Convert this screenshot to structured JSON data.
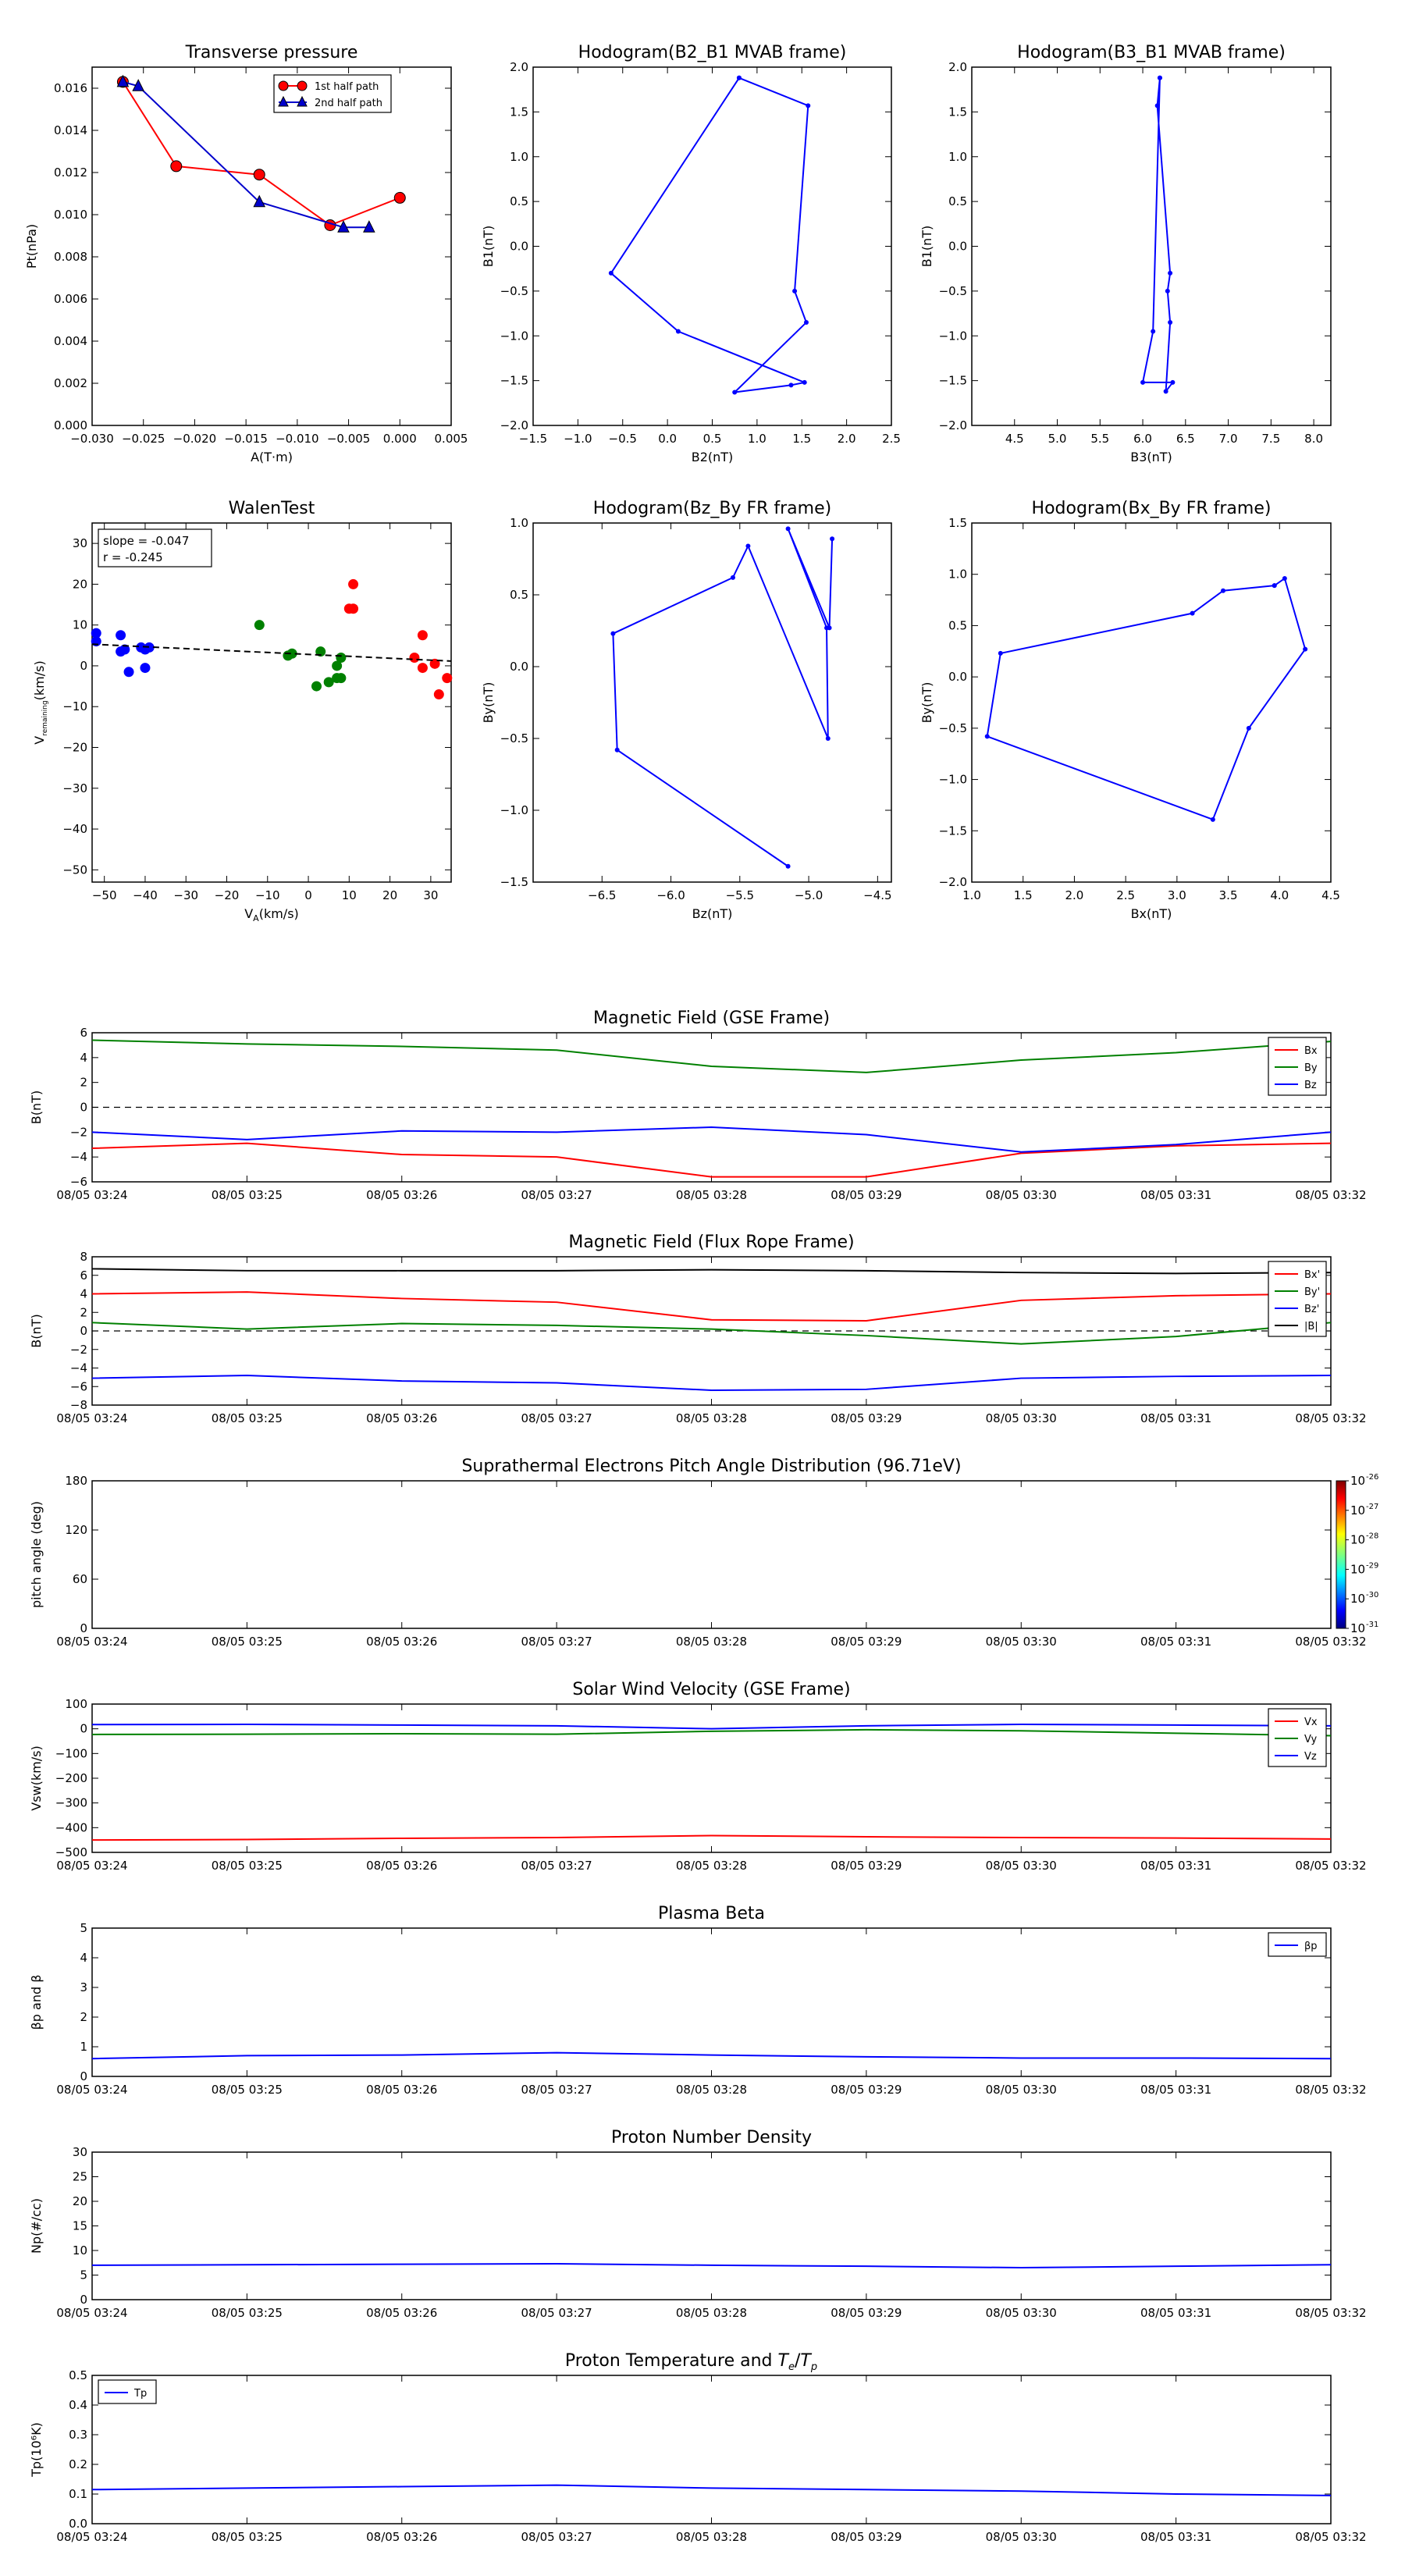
{
  "time_ticks": [
    "08/05 03:24",
    "08/05 03:25",
    "08/05 03:26",
    "08/05 03:27",
    "08/05 03:28",
    "08/05 03:29",
    "08/05 03:30",
    "08/05 03:31",
    "08/05 03:32"
  ],
  "chart_data": [
    {
      "id": "pt",
      "type": "line",
      "title": "Transverse pressure",
      "xlabel": "A(T·m)",
      "ylabel": "Pt(nPa)",
      "xlim": [
        -0.03,
        0.005
      ],
      "ylim": [
        0,
        0.017
      ],
      "xticks": [
        -0.03,
        -0.025,
        -0.02,
        -0.015,
        -0.01,
        -0.005,
        0.0,
        0.005
      ],
      "xtick_labels": [
        "−0.030",
        "−0.025",
        "−0.020",
        "−0.015",
        "−0.010",
        "−0.005",
        "0.000",
        "0.005"
      ],
      "yticks": [
        0,
        0.002,
        0.004,
        0.006,
        0.008,
        0.01,
        0.012,
        0.014,
        0.016
      ],
      "ytick_labels": [
        "0.000",
        "0.002",
        "0.004",
        "0.006",
        "0.008",
        "0.010",
        "0.012",
        "0.014",
        "0.016"
      ],
      "legend": "top-center",
      "series": [
        {
          "name": "1st half path",
          "color": "#ff0000",
          "marker": "circle",
          "x": [
            -0.027,
            -0.0218,
            -0.0137,
            -0.0068,
            0.0
          ],
          "y": [
            0.0163,
            0.0123,
            0.0119,
            0.0095,
            0.0108
          ]
        },
        {
          "name": "2nd half path",
          "color": "#0000cc",
          "marker": "triangle",
          "x": [
            -0.027,
            -0.0255,
            -0.0137,
            -0.0055,
            -0.003
          ],
          "y": [
            0.0163,
            0.0161,
            0.0106,
            0.0094,
            0.0094
          ]
        }
      ]
    },
    {
      "id": "h21",
      "type": "line",
      "title": "Hodogram(B2_B1 MVAB frame)",
      "xlabel": "B2(nT)",
      "ylabel": "B1(nT)",
      "xlim": [
        -1.5,
        2.5
      ],
      "ylim": [
        -2.0,
        2.0
      ],
      "xticks": [
        -1.5,
        -1.0,
        -0.5,
        0.0,
        0.5,
        1.0,
        1.5,
        2.0,
        2.5
      ],
      "xtick_labels": [
        "−1.5",
        "−1.0",
        "−0.5",
        "0.0",
        "0.5",
        "1.0",
        "1.5",
        "2.0",
        "2.5"
      ],
      "yticks": [
        -2.0,
        -1.5,
        -1.0,
        -0.5,
        0.0,
        0.5,
        1.0,
        1.5,
        2.0
      ],
      "ytick_labels": [
        "−2.0",
        "−1.5",
        "−1.0",
        "−0.5",
        "0.0",
        "0.5",
        "1.0",
        "1.5",
        "2.0"
      ],
      "series": [
        {
          "color": "#0000ff",
          "marker": "dot",
          "x": [
            0.8,
            1.57,
            1.42,
            1.55,
            0.75,
            1.38,
            1.53,
            0.12,
            -0.63,
            0.8
          ],
          "y": [
            1.88,
            1.57,
            -0.5,
            -0.85,
            -1.63,
            -1.55,
            -1.52,
            -0.95,
            -0.3,
            1.88
          ]
        }
      ]
    },
    {
      "id": "h31",
      "type": "line",
      "title": "Hodogram(B3_B1 MVAB frame)",
      "xlabel": "B3(nT)",
      "ylabel": "B1(nT)",
      "xlim": [
        4.0,
        8.2
      ],
      "ylim": [
        -2.0,
        2.0
      ],
      "xticks": [
        4.5,
        5.0,
        5.5,
        6.0,
        6.5,
        7.0,
        7.5,
        8.0
      ],
      "xtick_labels": [
        "4.5",
        "5.0",
        "5.5",
        "6.0",
        "6.5",
        "7.0",
        "7.5",
        "8.0"
      ],
      "yticks": [
        -2.0,
        -1.5,
        -1.0,
        -0.5,
        0.0,
        0.5,
        1.0,
        1.5,
        2.0
      ],
      "ytick_labels": [
        "−2.0",
        "−1.5",
        "−1.0",
        "−0.5",
        "0.0",
        "0.5",
        "1.0",
        "1.5",
        "2.0"
      ],
      "series": [
        {
          "color": "#0000ff",
          "marker": "dot",
          "x": [
            6.2,
            6.17,
            6.32,
            6.29,
            6.32,
            6.27,
            6.35,
            6.0,
            6.12,
            6.2
          ],
          "y": [
            1.88,
            1.57,
            -0.3,
            -0.5,
            -0.85,
            -1.62,
            -1.52,
            -1.52,
            -0.95,
            1.88
          ]
        }
      ]
    },
    {
      "id": "walen",
      "type": "scatter",
      "title": "WalenTest",
      "xlabel": "V_A(km/s)",
      "ylabel": "V_remaining(km/s)",
      "xlim": [
        -53,
        35
      ],
      "ylim": [
        -53,
        35
      ],
      "xticks": [
        -50,
        -40,
        -30,
        -20,
        -10,
        0,
        10,
        20,
        30
      ],
      "xtick_labels": [
        "−50",
        "−40",
        "−30",
        "−20",
        "−10",
        "0",
        "10",
        "20",
        "30"
      ],
      "yticks": [
        -50,
        -40,
        -30,
        -20,
        -10,
        0,
        10,
        20,
        30
      ],
      "ytick_labels": [
        "−50",
        "−40",
        "−30",
        "−20",
        "−10",
        "0",
        "10",
        "20",
        "30"
      ],
      "annotation": [
        "slope = -0.047",
        "r = -0.245"
      ],
      "fit": {
        "slope": -0.047,
        "intercept": 2.8
      },
      "groups": [
        {
          "color": "#0000ff",
          "x": [
            -52,
            -52,
            -46,
            -46,
            -45,
            -44,
            -41,
            -40,
            -40,
            -39
          ],
          "y": [
            8,
            6,
            7.5,
            3.5,
            4,
            -1.5,
            4.5,
            4,
            -0.5,
            4.5
          ]
        },
        {
          "color": "#008000",
          "x": [
            -12,
            -5,
            -4,
            2,
            3,
            5,
            7,
            7,
            8,
            8
          ],
          "y": [
            10,
            2.5,
            3,
            -5,
            3.5,
            -4,
            -3,
            0,
            2,
            -3
          ]
        },
        {
          "color": "#ff0000",
          "x": [
            10,
            11,
            11,
            26,
            28,
            28,
            31,
            32,
            34
          ],
          "y": [
            14,
            20,
            14,
            2,
            -0.5,
            7.5,
            0.5,
            -7,
            -3
          ]
        }
      ]
    },
    {
      "id": "hzy",
      "type": "line",
      "title": "Hodogram(Bz_By FR frame)",
      "xlabel": "Bz(nT)",
      "ylabel": "By(nT)",
      "xlim": [
        -7.0,
        -4.4
      ],
      "ylim": [
        -1.5,
        1.0
      ],
      "xticks": [
        -6.5,
        -6.0,
        -5.5,
        -5.0,
        -4.5
      ],
      "xtick_labels": [
        "−6.5",
        "−6.0",
        "−5.5",
        "−5.0",
        "−4.5"
      ],
      "yticks": [
        -1.5,
        -1.0,
        -0.5,
        0.0,
        0.5,
        1.0
      ],
      "ytick_labels": [
        "−1.5",
        "−1.0",
        "−0.5",
        "0.0",
        "0.5",
        "1.0"
      ],
      "series": [
        {
          "color": "#0000ff",
          "marker": "dot",
          "x": [
            -4.83,
            -4.85,
            -5.15,
            -4.87,
            -4.86,
            -5.44,
            -5.55,
            -6.42,
            -6.39,
            -5.15
          ],
          "y": [
            0.89,
            0.27,
            0.96,
            0.27,
            -0.5,
            0.84,
            0.62,
            0.23,
            -0.58,
            -1.39
          ]
        }
      ]
    },
    {
      "id": "hxy",
      "type": "line",
      "title": "Hodogram(Bx_By FR frame)",
      "xlabel": "Bx(nT)",
      "ylabel": "By(nT)",
      "xlim": [
        1.0,
        4.5
      ],
      "ylim": [
        -2.0,
        1.5
      ],
      "xticks": [
        1.0,
        1.5,
        2.0,
        2.5,
        3.0,
        3.5,
        4.0,
        4.5
      ],
      "xtick_labels": [
        "1.0",
        "1.5",
        "2.0",
        "2.5",
        "3.0",
        "3.5",
        "4.0",
        "4.5"
      ],
      "yticks": [
        -2.0,
        -1.5,
        -1.0,
        -0.5,
        0.0,
        0.5,
        1.0,
        1.5
      ],
      "ytick_labels": [
        "−2.0",
        "−1.5",
        "−1.0",
        "−0.5",
        "0.0",
        "0.5",
        "1.0",
        "1.5"
      ],
      "series": [
        {
          "color": "#0000ff",
          "marker": "dot",
          "x": [
            3.95,
            4.05,
            4.25,
            3.7,
            3.35,
            1.15,
            1.28,
            3.15,
            3.45,
            3.95
          ],
          "y": [
            0.89,
            0.96,
            0.27,
            -0.5,
            -1.39,
            -0.58,
            0.23,
            0.62,
            0.84,
            0.89
          ]
        }
      ]
    },
    {
      "id": "bgse",
      "type": "line",
      "title": "Magnetic Field (GSE Frame)",
      "ylabel": "B(nT)",
      "ylim": [
        -6,
        6
      ],
      "yticks": [
        -6,
        -4,
        -2,
        0,
        2,
        4,
        6
      ],
      "ytick_labels": [
        "−6",
        "−4",
        "−2",
        "0",
        "2",
        "4",
        "6"
      ],
      "zero_line": true,
      "legend": "top-right",
      "series": [
        {
          "name": "Bx",
          "color": "#ff0000",
          "values": [
            -3.3,
            -2.9,
            -3.8,
            -4.0,
            -5.6,
            -5.6,
            -3.7,
            -3.1,
            -2.9
          ]
        },
        {
          "name": "By",
          "color": "#008000",
          "values": [
            5.4,
            5.1,
            4.9,
            4.6,
            3.3,
            2.8,
            3.8,
            4.4,
            5.3
          ]
        },
        {
          "name": "Bz",
          "color": "#0000ff",
          "values": [
            -2.0,
            -2.6,
            -1.9,
            -2.0,
            -1.6,
            -2.2,
            -3.6,
            -3.0,
            -2.0
          ]
        }
      ]
    },
    {
      "id": "bfr",
      "type": "line",
      "title": "Magnetic Field (Flux Rope Frame)",
      "ylabel": "B(nT)",
      "ylim": [
        -8,
        8
      ],
      "yticks": [
        -8,
        -6,
        -4,
        -2,
        0,
        2,
        4,
        6,
        8
      ],
      "ytick_labels": [
        "−8",
        "−6",
        "−4",
        "−2",
        "0",
        "2",
        "4",
        "6",
        "8"
      ],
      "zero_line": true,
      "legend": "top-right",
      "series": [
        {
          "name": "Bx'",
          "color": "#ff0000",
          "values": [
            4.0,
            4.2,
            3.5,
            3.1,
            1.2,
            1.1,
            3.3,
            3.8,
            4.0
          ]
        },
        {
          "name": "By'",
          "color": "#008000",
          "values": [
            0.9,
            0.2,
            0.8,
            0.6,
            0.2,
            -0.5,
            -1.4,
            -0.6,
            0.9
          ]
        },
        {
          "name": "Bz'",
          "color": "#0000ff",
          "values": [
            -5.1,
            -4.8,
            -5.4,
            -5.6,
            -6.4,
            -6.3,
            -5.1,
            -4.9,
            -4.8
          ]
        },
        {
          "name": "|B|",
          "color": "#000000",
          "values": [
            6.7,
            6.5,
            6.5,
            6.5,
            6.6,
            6.5,
            6.3,
            6.2,
            6.3
          ]
        }
      ]
    },
    {
      "id": "pad",
      "type": "heatmap",
      "title": "Suprathermal Electrons Pitch Angle Distribution (96.71eV)",
      "ylabel": "pitch angle (deg)",
      "ylim": [
        0,
        180
      ],
      "yticks": [
        0,
        60,
        120,
        180
      ],
      "ytick_labels": [
        "0",
        "60",
        "120",
        "180"
      ],
      "colorbar_labels": [
        "10",
        "10",
        "10",
        "10",
        "10",
        "10"
      ],
      "colorbar_exps": [
        "-26",
        "-27",
        "-28",
        "-29",
        "-30",
        "-31"
      ]
    },
    {
      "id": "vsw",
      "type": "line",
      "title": "Solar Wind Velocity (GSE Frame)",
      "ylabel": "Vsw(km/s)",
      "ylim": [
        -500,
        100
      ],
      "yticks": [
        -500,
        -400,
        -300,
        -200,
        -100,
        0,
        100
      ],
      "ytick_labels": [
        "−500",
        "−400",
        "−300",
        "−200",
        "−100",
        "0",
        "100"
      ],
      "legend": "top-right",
      "series": [
        {
          "name": "Vx",
          "color": "#ff0000",
          "values": [
            -450,
            -448,
            -443,
            -440,
            -432,
            -437,
            -440,
            -442,
            -446
          ]
        },
        {
          "name": "Vy",
          "color": "#008000",
          "values": [
            -23,
            -22,
            -20,
            -22,
            -10,
            -4,
            -8,
            -18,
            -28
          ]
        },
        {
          "name": "Vz",
          "color": "#0000ff",
          "values": [
            17,
            18,
            15,
            12,
            0,
            12,
            18,
            15,
            12
          ]
        }
      ]
    },
    {
      "id": "beta",
      "type": "line",
      "title": "Plasma Beta",
      "ylabel": "βp and β",
      "ylim": [
        0,
        5
      ],
      "yticks": [
        0,
        1,
        2,
        3,
        4,
        5
      ],
      "ytick_labels": [
        "0",
        "1",
        "2",
        "3",
        "4",
        "5"
      ],
      "legend": "top-right",
      "series": [
        {
          "name": "βp",
          "color": "#0000ff",
          "values": [
            0.6,
            0.7,
            0.72,
            0.8,
            0.72,
            0.66,
            0.62,
            0.62,
            0.6
          ]
        }
      ]
    },
    {
      "id": "np",
      "type": "line",
      "title": "Proton Number Density",
      "ylabel": "Np(#/cc)",
      "ylim": [
        0,
        30
      ],
      "yticks": [
        0,
        5,
        10,
        15,
        20,
        25,
        30
      ],
      "ytick_labels": [
        "0",
        "5",
        "10",
        "15",
        "20",
        "25",
        "30"
      ],
      "series": [
        {
          "color": "#0000ff",
          "values": [
            7.0,
            7.1,
            7.2,
            7.3,
            7.0,
            6.8,
            6.5,
            6.8,
            7.1
          ]
        }
      ]
    },
    {
      "id": "tp",
      "type": "line",
      "title": "Proton Temperature and Te/Tp",
      "ylabel": "Tp(10⁶K)",
      "ylim": [
        0,
        0.5
      ],
      "yticks": [
        0,
        0.1,
        0.2,
        0.3,
        0.4,
        0.5
      ],
      "ytick_labels": [
        "0.0",
        "0.1",
        "0.2",
        "0.3",
        "0.4",
        "0.5"
      ],
      "legend": "top-left",
      "series": [
        {
          "name": "Tp",
          "color": "#0000ff",
          "values": [
            0.115,
            0.12,
            0.125,
            0.13,
            0.12,
            0.115,
            0.11,
            0.1,
            0.095
          ]
        }
      ]
    }
  ]
}
